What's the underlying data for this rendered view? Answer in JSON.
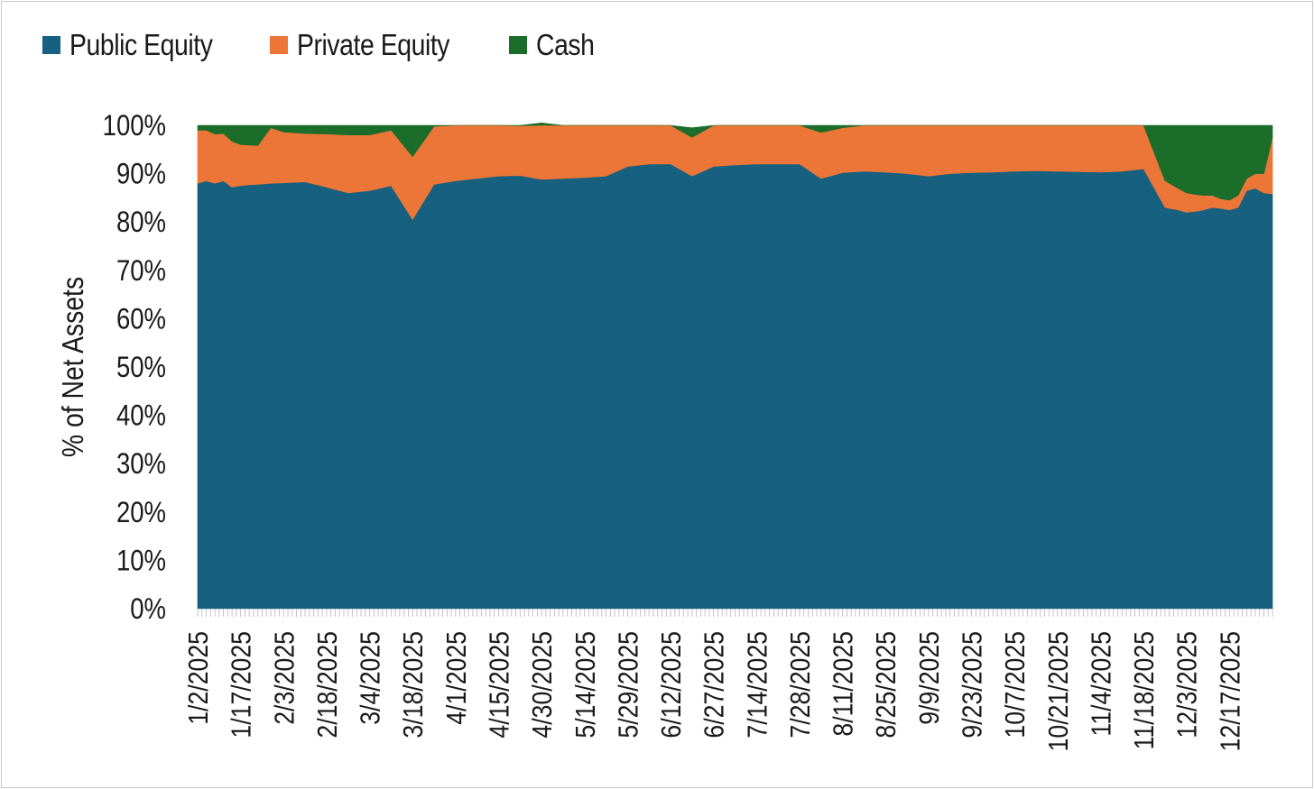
{
  "colors": {
    "public": "#17607f",
    "private": "#eb7637",
    "cash": "#1c6c2a",
    "border": "#c8c8c8"
  },
  "legend": [
    {
      "name": "Public Equity",
      "color": "#17607f"
    },
    {
      "name": "Private Equity",
      "color": "#eb7637"
    },
    {
      "name": "Cash",
      "color": "#1c6c2a"
    }
  ],
  "chart_data": {
    "type": "area",
    "stacked": true,
    "title": "",
    "xlabel": "",
    "ylabel": "% of Net Assets",
    "ylim": [
      0,
      100
    ],
    "y_ticks": [
      "0%",
      "10%",
      "20%",
      "30%",
      "40%",
      "50%",
      "60%",
      "70%",
      "80%",
      "90%",
      "100%"
    ],
    "x_ticks": [
      "1/2/2025",
      "1/17/2025",
      "2/3/2025",
      "2/18/2025",
      "3/4/2025",
      "3/18/2025",
      "4/1/2025",
      "4/15/2025",
      "4/30/2025",
      "5/14/2025",
      "5/29/2025",
      "6/12/2025",
      "6/27/2025",
      "7/14/2025",
      "7/28/2025",
      "8/11/2025",
      "8/25/2025",
      "9/9/2025",
      "9/23/2025",
      "10/7/2025",
      "10/21/2025",
      "11/4/2025",
      "11/18/2025",
      "12/3/2025",
      "12/17/2025"
    ],
    "legend_position": "top-left",
    "x_index_range": [
      0,
      250
    ],
    "x_tick_index_step": 10,
    "x": [
      0,
      2,
      4,
      6,
      8,
      10,
      12,
      14,
      17,
      20,
      25,
      30,
      35,
      40,
      45,
      50,
      55,
      60,
      65,
      70,
      75,
      80,
      85,
      90,
      95,
      100,
      105,
      110,
      115,
      120,
      125,
      130,
      135,
      140,
      145,
      150,
      155,
      160,
      165,
      170,
      175,
      180,
      185,
      190,
      195,
      200,
      205,
      210,
      215,
      220,
      225,
      226,
      228,
      230,
      232,
      234,
      236,
      238,
      240,
      242,
      244,
      246,
      248,
      250
    ],
    "series": [
      {
        "name": "Public Equity",
        "values": [
          88,
          88.5,
          88,
          88.5,
          87.2,
          87.5,
          87.7,
          87.8,
          88,
          88.1,
          88.3,
          87.2,
          86,
          86.5,
          87.5,
          80.5,
          87.8,
          88.5,
          89,
          89.5,
          89.6,
          88.8,
          89,
          89.2,
          89.5,
          91.5,
          92,
          92,
          89.5,
          91.5,
          91.8,
          92,
          92,
          92,
          89,
          90.2,
          90.5,
          90.3,
          90,
          89.5,
          90,
          90.2,
          90.3,
          90.5,
          90.6,
          90.5,
          90.4,
          90.3,
          90.5,
          91,
          83,
          82.8,
          82.5,
          82,
          82.2,
          82.5,
          83,
          82.8,
          82.5,
          83,
          86.5,
          87,
          86,
          85.8
        ]
      },
      {
        "name": "Private Equity",
        "values": [
          11,
          10.5,
          10.2,
          9.8,
          9.5,
          8.5,
          8.2,
          8,
          11.5,
          10.5,
          10,
          11,
          12,
          11.5,
          11.5,
          13,
          12,
          11.5,
          11,
          10.5,
          10.3,
          11.2,
          11,
          10.8,
          10.5,
          8.5,
          8,
          8,
          8,
          8.5,
          8.2,
          8,
          8,
          8,
          9.5,
          9.3,
          9.5,
          9.7,
          10,
          10.5,
          10,
          9.8,
          9.7,
          9.5,
          9.4,
          9.5,
          9.6,
          9.7,
          9.5,
          9,
          5.5,
          5.2,
          4.5,
          4,
          3.5,
          3,
          2.5,
          2,
          2,
          2.5,
          2.5,
          3,
          4,
          11.7
        ]
      },
      {
        "name": "Cash",
        "values": [
          1,
          1,
          1.8,
          1.7,
          3.3,
          4,
          4.1,
          4.2,
          0.5,
          1.4,
          1.7,
          1.8,
          2,
          2,
          1,
          6.5,
          0.2,
          0,
          0,
          0,
          0.1,
          0.5,
          0,
          0,
          0,
          0,
          0,
          0,
          2,
          0,
          0,
          0,
          0,
          0,
          1.5,
          0.5,
          0,
          0,
          0,
          0,
          0,
          0,
          0,
          0,
          0,
          0,
          0,
          0,
          0,
          0,
          11.5,
          12,
          13,
          14,
          14.3,
          14.5,
          14.5,
          15.2,
          15.5,
          14.5,
          11,
          10,
          10,
          2.5
        ]
      }
    ]
  }
}
